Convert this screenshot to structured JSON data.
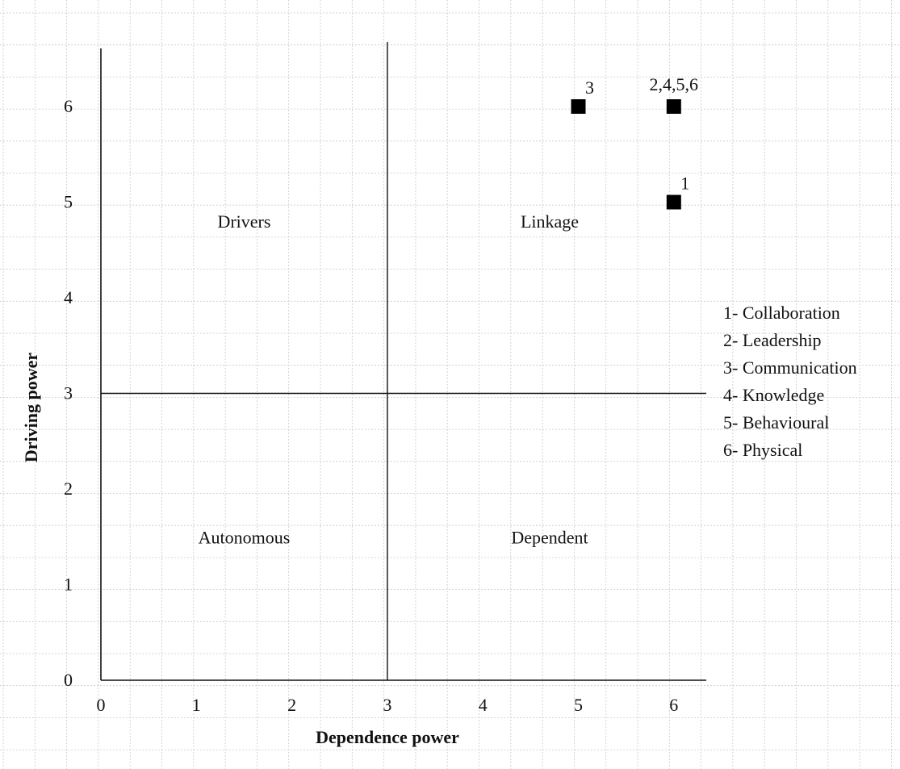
{
  "chart_data": {
    "type": "scatter",
    "title": "",
    "xlabel": "Dependence power",
    "ylabel": "Driving power",
    "xlim": [
      0,
      6
    ],
    "ylim": [
      0,
      6
    ],
    "x_ticks": [
      "0",
      "1",
      "2",
      "3",
      "4",
      "5",
      "6"
    ],
    "y_ticks": [
      "0",
      "1",
      "2",
      "3",
      "4",
      "5",
      "6"
    ],
    "grid": true,
    "divider": {
      "x": 3,
      "y": 3
    },
    "quadrants": [
      {
        "key": "drivers",
        "label": "Drivers",
        "x": 1.5,
        "y": 4.8
      },
      {
        "key": "linkage",
        "label": "Linkage",
        "x": 4.7,
        "y": 4.8
      },
      {
        "key": "autonomous",
        "label": "Autonomous",
        "x": 1.5,
        "y": 1.5
      },
      {
        "key": "dependent",
        "label": "Dependent",
        "x": 4.7,
        "y": 1.5
      }
    ],
    "points": [
      {
        "x": 5,
        "y": 6,
        "label": "3"
      },
      {
        "x": 6,
        "y": 6,
        "label": "2,4,5,6"
      },
      {
        "x": 6,
        "y": 5,
        "label": "1"
      }
    ],
    "legend": {
      "position": "right",
      "entries": [
        "1- Collaboration",
        "2- Leadership",
        "3- Communication",
        "4- Knowledge",
        "5- Behavioural",
        "6- Physical"
      ]
    }
  }
}
